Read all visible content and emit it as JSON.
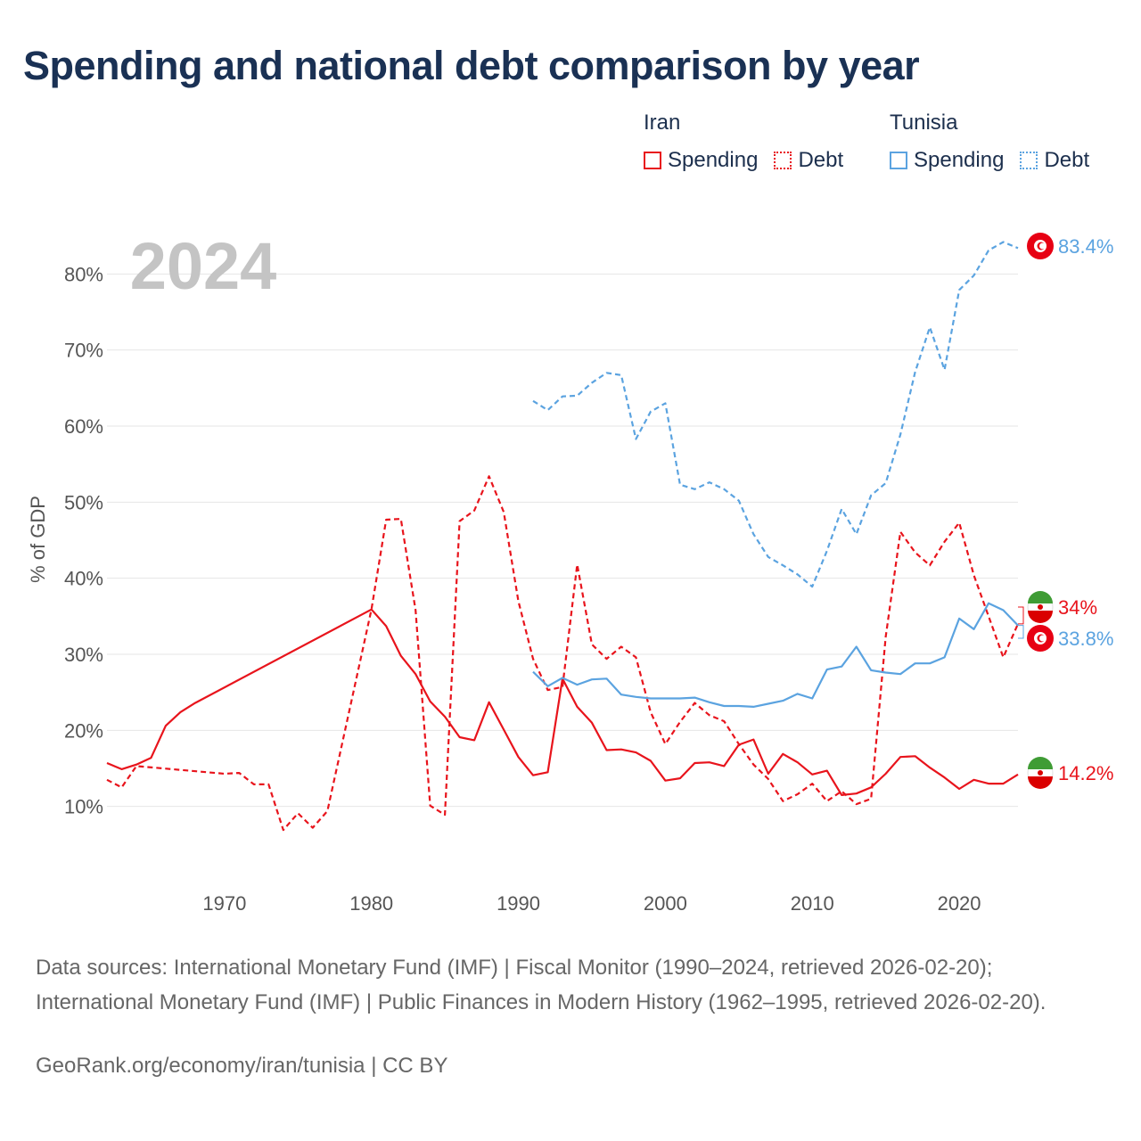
{
  "title": "Spending and national debt comparison by year",
  "legend": {
    "groups": [
      {
        "name": "Iran",
        "spending_label": "Spending",
        "debt_label": "Debt"
      },
      {
        "name": "Tunisia",
        "spending_label": "Spending",
        "debt_label": "Debt"
      }
    ]
  },
  "colors": {
    "iran": "#e8141c",
    "tunisia": "#5ba3e0",
    "year_label": "#c4c4c4",
    "grid": "#e6e6e6",
    "axis_text": "#555555"
  },
  "chart_data": {
    "type": "line",
    "year_label": "2024",
    "ylabel": "% of GDP",
    "xlabel": "",
    "xlim": [
      1962,
      2024
    ],
    "ylim": [
      0,
      90
    ],
    "yticks": [
      10,
      20,
      30,
      40,
      50,
      60,
      70,
      80
    ],
    "ytick_labels": [
      "10%",
      "20%",
      "30%",
      "40%",
      "50%",
      "60%",
      "70%",
      "80%"
    ],
    "xticks": [
      1970,
      1980,
      1990,
      2000,
      2010,
      2020
    ],
    "series": [
      {
        "name": "Iran Spending",
        "country": "Iran",
        "metric": "Spending",
        "style": "solid",
        "color": "#e8141c",
        "end_label": "14.2%",
        "points": [
          [
            1962,
            15.7
          ],
          [
            1963,
            14.9
          ],
          [
            1964,
            15.5
          ],
          [
            1965,
            16.4
          ],
          [
            1966,
            20.6
          ],
          [
            1967,
            22.4
          ],
          [
            1968,
            23.6
          ],
          [
            1980,
            35.9
          ],
          [
            1981,
            33.7
          ],
          [
            1982,
            29.8
          ],
          [
            1983,
            27.4
          ],
          [
            1984,
            23.8
          ],
          [
            1985,
            21.8
          ],
          [
            1986,
            19.1
          ],
          [
            1987,
            18.7
          ],
          [
            1988,
            23.7
          ],
          [
            1989,
            20.1
          ],
          [
            1990,
            16.5
          ],
          [
            1991,
            14.1
          ],
          [
            1992,
            14.5
          ],
          [
            1993,
            26.8
          ],
          [
            1994,
            23.1
          ],
          [
            1995,
            21.0
          ],
          [
            1996,
            17.4
          ],
          [
            1997,
            17.5
          ],
          [
            1998,
            17.1
          ],
          [
            1999,
            16.0
          ],
          [
            2000,
            13.4
          ],
          [
            2001,
            13.7
          ],
          [
            2002,
            15.7
          ],
          [
            2003,
            15.8
          ],
          [
            2004,
            15.3
          ],
          [
            2005,
            18.1
          ],
          [
            2006,
            18.8
          ],
          [
            2007,
            14.3
          ],
          [
            2008,
            16.9
          ],
          [
            2009,
            15.8
          ],
          [
            2010,
            14.2
          ],
          [
            2011,
            14.7
          ],
          [
            2012,
            11.5
          ],
          [
            2013,
            11.7
          ],
          [
            2014,
            12.5
          ],
          [
            2015,
            14.3
          ],
          [
            2016,
            16.5
          ],
          [
            2017,
            16.6
          ],
          [
            2018,
            15.1
          ],
          [
            2019,
            13.8
          ],
          [
            2020,
            12.3
          ],
          [
            2021,
            13.5
          ],
          [
            2022,
            13.0
          ],
          [
            2023,
            13.0
          ],
          [
            2024,
            14.2
          ]
        ]
      },
      {
        "name": "Iran Debt",
        "country": "Iran",
        "metric": "Debt",
        "style": "dashed",
        "color": "#e8141c",
        "end_label": "34%",
        "points": [
          [
            1962,
            13.5
          ],
          [
            1963,
            12.5
          ],
          [
            1964,
            15.3
          ],
          [
            1970,
            14.3
          ],
          [
            1971,
            14.4
          ],
          [
            1972,
            12.9
          ],
          [
            1973,
            12.9
          ],
          [
            1974,
            6.9
          ],
          [
            1975,
            9.1
          ],
          [
            1976,
            7.2
          ],
          [
            1977,
            9.4
          ],
          [
            1980,
            35.9
          ],
          [
            1981,
            47.7
          ],
          [
            1982,
            47.8
          ],
          [
            1983,
            35.8
          ],
          [
            1984,
            10.1
          ],
          [
            1985,
            8.9
          ],
          [
            1986,
            47.5
          ],
          [
            1987,
            48.9
          ],
          [
            1988,
            53.4
          ],
          [
            1989,
            48.7
          ],
          [
            1990,
            37.0
          ],
          [
            1991,
            29.4
          ],
          [
            1992,
            25.3
          ],
          [
            1993,
            25.7
          ],
          [
            1994,
            41.8
          ],
          [
            1995,
            31.3
          ],
          [
            1996,
            29.4
          ],
          [
            1997,
            31.0
          ],
          [
            1998,
            29.6
          ],
          [
            1999,
            22.4
          ],
          [
            2000,
            18.2
          ],
          [
            2001,
            21.1
          ],
          [
            2002,
            23.6
          ],
          [
            2003,
            22.0
          ],
          [
            2004,
            21.2
          ],
          [
            2005,
            18.2
          ],
          [
            2006,
            15.5
          ],
          [
            2007,
            13.6
          ],
          [
            2008,
            10.7
          ],
          [
            2009,
            11.6
          ],
          [
            2010,
            13.0
          ],
          [
            2011,
            10.7
          ],
          [
            2012,
            12.0
          ],
          [
            2013,
            10.3
          ],
          [
            2014,
            11.0
          ],
          [
            2015,
            32.3
          ],
          [
            2016,
            46.1
          ],
          [
            2017,
            43.4
          ],
          [
            2018,
            41.7
          ],
          [
            2019,
            44.8
          ],
          [
            2020,
            47.3
          ],
          [
            2021,
            40.4
          ],
          [
            2022,
            35.0
          ],
          [
            2023,
            29.6
          ],
          [
            2024,
            34.0
          ]
        ]
      },
      {
        "name": "Tunisia Spending",
        "country": "Tunisia",
        "metric": "Spending",
        "style": "solid",
        "color": "#5ba3e0",
        "end_label": "33.8%",
        "points": [
          [
            1991,
            27.7
          ],
          [
            1992,
            25.8
          ],
          [
            1993,
            26.9
          ],
          [
            1994,
            26.0
          ],
          [
            1995,
            26.7
          ],
          [
            1996,
            26.8
          ],
          [
            1997,
            24.7
          ],
          [
            1998,
            24.4
          ],
          [
            1999,
            24.2
          ],
          [
            2000,
            24.2
          ],
          [
            2001,
            24.2
          ],
          [
            2002,
            24.3
          ],
          [
            2003,
            23.7
          ],
          [
            2004,
            23.2
          ],
          [
            2005,
            23.2
          ],
          [
            2006,
            23.1
          ],
          [
            2007,
            23.5
          ],
          [
            2008,
            23.9
          ],
          [
            2009,
            24.8
          ],
          [
            2010,
            24.2
          ],
          [
            2011,
            28.0
          ],
          [
            2012,
            28.4
          ],
          [
            2013,
            31.0
          ],
          [
            2014,
            27.9
          ],
          [
            2015,
            27.6
          ],
          [
            2016,
            27.4
          ],
          [
            2017,
            28.8
          ],
          [
            2018,
            28.8
          ],
          [
            2019,
            29.6
          ],
          [
            2020,
            34.7
          ],
          [
            2021,
            33.3
          ],
          [
            2022,
            36.7
          ],
          [
            2023,
            35.8
          ],
          [
            2024,
            33.8
          ]
        ]
      },
      {
        "name": "Tunisia Debt",
        "country": "Tunisia",
        "metric": "Debt",
        "style": "dashed",
        "color": "#5ba3e0",
        "end_label": "83.4%",
        "points": [
          [
            1991,
            63.3
          ],
          [
            1992,
            62.1
          ],
          [
            1993,
            63.9
          ],
          [
            1994,
            64.0
          ],
          [
            1995,
            65.7
          ],
          [
            1996,
            67.0
          ],
          [
            1997,
            66.7
          ],
          [
            1998,
            58.3
          ],
          [
            1999,
            61.9
          ],
          [
            2000,
            63.0
          ],
          [
            2001,
            52.3
          ],
          [
            2002,
            51.7
          ],
          [
            2003,
            52.6
          ],
          [
            2004,
            51.7
          ],
          [
            2005,
            50.2
          ],
          [
            2006,
            45.8
          ],
          [
            2007,
            42.8
          ],
          [
            2008,
            41.7
          ],
          [
            2009,
            40.5
          ],
          [
            2010,
            38.9
          ],
          [
            2011,
            43.6
          ],
          [
            2012,
            49.1
          ],
          [
            2013,
            45.8
          ],
          [
            2014,
            50.9
          ],
          [
            2015,
            52.5
          ],
          [
            2016,
            58.9
          ],
          [
            2017,
            67.1
          ],
          [
            2018,
            73.0
          ],
          [
            2019,
            67.4
          ],
          [
            2020,
            77.9
          ],
          [
            2021,
            79.8
          ],
          [
            2022,
            83.1
          ],
          [
            2023,
            84.2
          ],
          [
            2024,
            83.4
          ]
        ]
      }
    ]
  },
  "footer": {
    "source": "Data sources: International Monetary Fund (IMF) | Fiscal Monitor (1990–2024, retrieved 2026-02-20); International Monetary Fund (IMF) | Public Finances in Modern History (1962–1995, retrieved 2026-02-20).",
    "credit": "GeoRank.org/economy/iran/tunisia | CC BY"
  }
}
